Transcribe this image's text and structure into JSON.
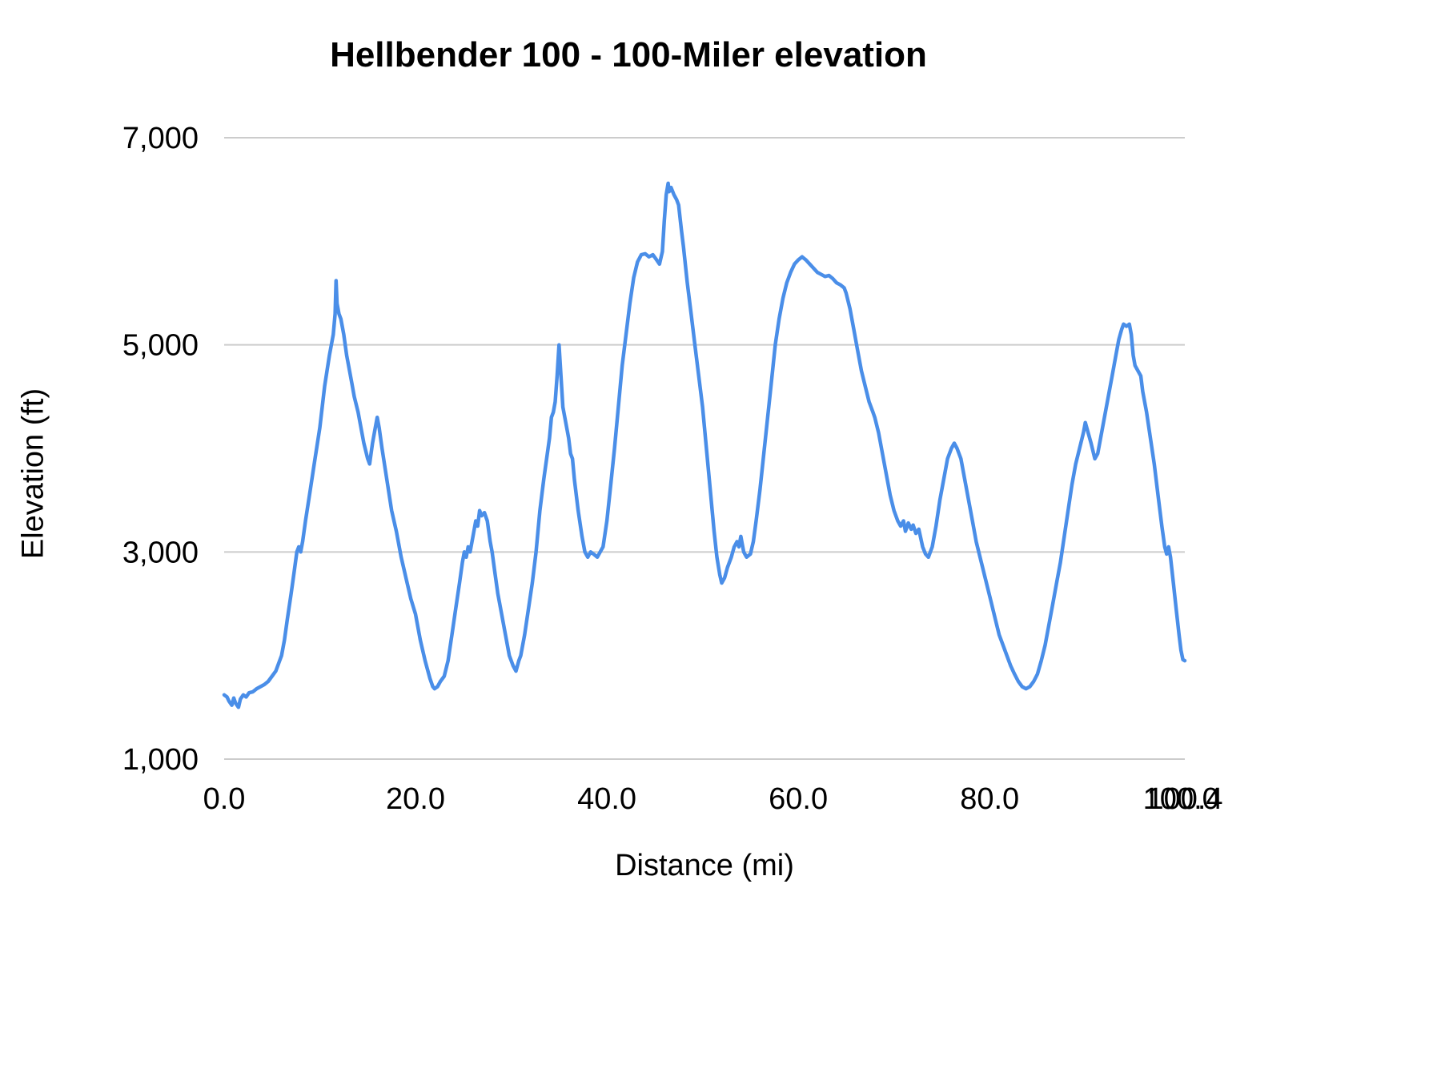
{
  "chart_data": {
    "type": "line",
    "title": "Hellbender 100 - 100-Miler elevation",
    "xlabel": "Distance (mi)",
    "ylabel": "Elevation (ft)",
    "xlim": [
      0,
      100.4
    ],
    "ylim": [
      1000,
      7000
    ],
    "grid": "horizontal",
    "legend": "none",
    "line_color": "#4a8ee8",
    "grid_color": "#cccccc",
    "text_color": "#000000",
    "x_ticks": [
      {
        "value": 0,
        "label": "0.0"
      },
      {
        "value": 20,
        "label": "20.0"
      },
      {
        "value": 40,
        "label": "40.0"
      },
      {
        "value": 60,
        "label": "60.0"
      },
      {
        "value": 80,
        "label": "80.0"
      },
      {
        "value": 100,
        "label": "100.0"
      },
      {
        "value": 100.4,
        "label": "100.4"
      }
    ],
    "y_ticks": [
      {
        "value": 1000,
        "label": "1,000"
      },
      {
        "value": 3000,
        "label": "3,000"
      },
      {
        "value": 5000,
        "label": "5,000"
      },
      {
        "value": 7000,
        "label": "7,000"
      }
    ],
    "series": [
      {
        "name": "Elevation",
        "points": [
          [
            0.0,
            1620
          ],
          [
            0.3,
            1600
          ],
          [
            0.5,
            1560
          ],
          [
            0.8,
            1520
          ],
          [
            1.0,
            1590
          ],
          [
            1.2,
            1540
          ],
          [
            1.5,
            1500
          ],
          [
            1.7,
            1580
          ],
          [
            2.0,
            1620
          ],
          [
            2.3,
            1600
          ],
          [
            2.6,
            1640
          ],
          [
            3.0,
            1650
          ],
          [
            3.4,
            1680
          ],
          [
            3.8,
            1700
          ],
          [
            4.2,
            1720
          ],
          [
            4.6,
            1750
          ],
          [
            5.0,
            1800
          ],
          [
            5.4,
            1850
          ],
          [
            5.8,
            1950
          ],
          [
            6.0,
            2000
          ],
          [
            6.3,
            2150
          ],
          [
            6.6,
            2350
          ],
          [
            7.0,
            2600
          ],
          [
            7.3,
            2800
          ],
          [
            7.6,
            3000
          ],
          [
            7.8,
            3050
          ],
          [
            8.0,
            3000
          ],
          [
            8.2,
            3100
          ],
          [
            8.5,
            3300
          ],
          [
            9.0,
            3600
          ],
          [
            9.5,
            3900
          ],
          [
            10.0,
            4200
          ],
          [
            10.5,
            4600
          ],
          [
            11.0,
            4900
          ],
          [
            11.2,
            5000
          ],
          [
            11.4,
            5100
          ],
          [
            11.6,
            5300
          ],
          [
            11.7,
            5620
          ],
          [
            11.8,
            5400
          ],
          [
            12.0,
            5300
          ],
          [
            12.2,
            5250
          ],
          [
            12.5,
            5100
          ],
          [
            12.8,
            4900
          ],
          [
            13.0,
            4800
          ],
          [
            13.3,
            4650
          ],
          [
            13.6,
            4500
          ],
          [
            14.0,
            4350
          ],
          [
            14.3,
            4200
          ],
          [
            14.6,
            4050
          ],
          [
            15.0,
            3900
          ],
          [
            15.2,
            3850
          ],
          [
            15.5,
            4050
          ],
          [
            15.8,
            4200
          ],
          [
            16.0,
            4300
          ],
          [
            16.2,
            4200
          ],
          [
            16.5,
            4000
          ],
          [
            17.0,
            3700
          ],
          [
            17.5,
            3400
          ],
          [
            18.0,
            3200
          ],
          [
            18.5,
            2950
          ],
          [
            19.0,
            2750
          ],
          [
            19.5,
            2550
          ],
          [
            20.0,
            2400
          ],
          [
            20.5,
            2150
          ],
          [
            21.0,
            1950
          ],
          [
            21.5,
            1780
          ],
          [
            21.8,
            1700
          ],
          [
            22.0,
            1680
          ],
          [
            22.3,
            1700
          ],
          [
            22.6,
            1750
          ],
          [
            23.0,
            1800
          ],
          [
            23.4,
            1950
          ],
          [
            23.8,
            2200
          ],
          [
            24.2,
            2450
          ],
          [
            24.6,
            2700
          ],
          [
            24.9,
            2900
          ],
          [
            25.1,
            3000
          ],
          [
            25.3,
            2950
          ],
          [
            25.5,
            3050
          ],
          [
            25.7,
            3000
          ],
          [
            26.0,
            3150
          ],
          [
            26.3,
            3300
          ],
          [
            26.5,
            3250
          ],
          [
            26.7,
            3400
          ],
          [
            26.9,
            3350
          ],
          [
            27.2,
            3380
          ],
          [
            27.5,
            3300
          ],
          [
            27.8,
            3100
          ],
          [
            28.0,
            3000
          ],
          [
            28.3,
            2800
          ],
          [
            28.6,
            2600
          ],
          [
            29.0,
            2400
          ],
          [
            29.4,
            2200
          ],
          [
            29.8,
            2000
          ],
          [
            30.2,
            1900
          ],
          [
            30.5,
            1850
          ],
          [
            30.8,
            1950
          ],
          [
            31.0,
            2000
          ],
          [
            31.4,
            2200
          ],
          [
            31.8,
            2450
          ],
          [
            32.2,
            2700
          ],
          [
            32.6,
            3000
          ],
          [
            33.0,
            3400
          ],
          [
            33.4,
            3700
          ],
          [
            33.7,
            3900
          ],
          [
            34.0,
            4100
          ],
          [
            34.2,
            4300
          ],
          [
            34.4,
            4350
          ],
          [
            34.6,
            4450
          ],
          [
            34.8,
            4700
          ],
          [
            35.0,
            5000
          ],
          [
            35.2,
            4700
          ],
          [
            35.4,
            4400
          ],
          [
            35.6,
            4300
          ],
          [
            35.8,
            4200
          ],
          [
            36.0,
            4100
          ],
          [
            36.2,
            3950
          ],
          [
            36.4,
            3900
          ],
          [
            36.6,
            3700
          ],
          [
            37.0,
            3400
          ],
          [
            37.4,
            3150
          ],
          [
            37.7,
            3000
          ],
          [
            38.0,
            2950
          ],
          [
            38.3,
            3000
          ],
          [
            38.6,
            2980
          ],
          [
            39.0,
            2950
          ],
          [
            39.3,
            3000
          ],
          [
            39.6,
            3050
          ],
          [
            40.0,
            3300
          ],
          [
            40.4,
            3650
          ],
          [
            40.8,
            4000
          ],
          [
            41.2,
            4400
          ],
          [
            41.6,
            4800
          ],
          [
            42.0,
            5100
          ],
          [
            42.4,
            5400
          ],
          [
            42.8,
            5650
          ],
          [
            43.2,
            5800
          ],
          [
            43.6,
            5870
          ],
          [
            44.0,
            5880
          ],
          [
            44.4,
            5850
          ],
          [
            44.8,
            5870
          ],
          [
            45.2,
            5820
          ],
          [
            45.5,
            5780
          ],
          [
            45.8,
            5900
          ],
          [
            46.0,
            6200
          ],
          [
            46.2,
            6450
          ],
          [
            46.4,
            6560
          ],
          [
            46.5,
            6480
          ],
          [
            46.7,
            6520
          ],
          [
            47.0,
            6450
          ],
          [
            47.3,
            6400
          ],
          [
            47.5,
            6350
          ],
          [
            47.8,
            6100
          ],
          [
            48.0,
            5950
          ],
          [
            48.4,
            5600
          ],
          [
            48.8,
            5300
          ],
          [
            49.2,
            5000
          ],
          [
            49.6,
            4700
          ],
          [
            50.0,
            4400
          ],
          [
            50.4,
            4000
          ],
          [
            50.8,
            3600
          ],
          [
            51.2,
            3200
          ],
          [
            51.5,
            2950
          ],
          [
            51.8,
            2780
          ],
          [
            52.0,
            2700
          ],
          [
            52.3,
            2750
          ],
          [
            52.6,
            2850
          ],
          [
            53.0,
            2950
          ],
          [
            53.3,
            3050
          ],
          [
            53.6,
            3100
          ],
          [
            53.8,
            3050
          ],
          [
            54.0,
            3150
          ],
          [
            54.3,
            3000
          ],
          [
            54.6,
            2950
          ],
          [
            55.0,
            2980
          ],
          [
            55.3,
            3100
          ],
          [
            55.6,
            3300
          ],
          [
            56.0,
            3600
          ],
          [
            56.4,
            3950
          ],
          [
            56.8,
            4300
          ],
          [
            57.2,
            4650
          ],
          [
            57.6,
            5000
          ],
          [
            58.0,
            5250
          ],
          [
            58.4,
            5450
          ],
          [
            58.8,
            5600
          ],
          [
            59.2,
            5700
          ],
          [
            59.6,
            5780
          ],
          [
            60.0,
            5820
          ],
          [
            60.4,
            5850
          ],
          [
            60.8,
            5820
          ],
          [
            61.2,
            5780
          ],
          [
            61.6,
            5740
          ],
          [
            62.0,
            5700
          ],
          [
            62.4,
            5680
          ],
          [
            62.8,
            5660
          ],
          [
            63.2,
            5670
          ],
          [
            63.6,
            5640
          ],
          [
            64.0,
            5600
          ],
          [
            64.4,
            5580
          ],
          [
            64.8,
            5550
          ],
          [
            65.0,
            5500
          ],
          [
            65.4,
            5350
          ],
          [
            65.8,
            5150
          ],
          [
            66.2,
            4950
          ],
          [
            66.6,
            4750
          ],
          [
            67.0,
            4600
          ],
          [
            67.4,
            4450
          ],
          [
            67.8,
            4350
          ],
          [
            68.0,
            4300
          ],
          [
            68.4,
            4150
          ],
          [
            68.8,
            3950
          ],
          [
            69.2,
            3750
          ],
          [
            69.6,
            3550
          ],
          [
            70.0,
            3400
          ],
          [
            70.4,
            3300
          ],
          [
            70.7,
            3250
          ],
          [
            71.0,
            3300
          ],
          [
            71.2,
            3200
          ],
          [
            71.5,
            3280
          ],
          [
            71.8,
            3220
          ],
          [
            72.0,
            3260
          ],
          [
            72.3,
            3180
          ],
          [
            72.6,
            3220
          ],
          [
            73.0,
            3050
          ],
          [
            73.3,
            2980
          ],
          [
            73.6,
            2950
          ],
          [
            74.0,
            3050
          ],
          [
            74.4,
            3250
          ],
          [
            74.8,
            3500
          ],
          [
            75.2,
            3700
          ],
          [
            75.6,
            3900
          ],
          [
            76.0,
            4000
          ],
          [
            76.3,
            4050
          ],
          [
            76.6,
            4000
          ],
          [
            77.0,
            3900
          ],
          [
            77.4,
            3700
          ],
          [
            77.8,
            3500
          ],
          [
            78.2,
            3300
          ],
          [
            78.6,
            3100
          ],
          [
            79.0,
            2950
          ],
          [
            79.4,
            2800
          ],
          [
            79.8,
            2650
          ],
          [
            80.2,
            2500
          ],
          [
            80.6,
            2350
          ],
          [
            81.0,
            2200
          ],
          [
            81.4,
            2100
          ],
          [
            81.8,
            2000
          ],
          [
            82.2,
            1900
          ],
          [
            82.6,
            1820
          ],
          [
            83.0,
            1750
          ],
          [
            83.4,
            1700
          ],
          [
            83.8,
            1680
          ],
          [
            84.2,
            1700
          ],
          [
            84.6,
            1750
          ],
          [
            85.0,
            1820
          ],
          [
            85.4,
            1950
          ],
          [
            85.8,
            2100
          ],
          [
            86.2,
            2300
          ],
          [
            86.6,
            2500
          ],
          [
            87.0,
            2700
          ],
          [
            87.4,
            2900
          ],
          [
            87.8,
            3150
          ],
          [
            88.2,
            3400
          ],
          [
            88.6,
            3650
          ],
          [
            89.0,
            3850
          ],
          [
            89.4,
            4000
          ],
          [
            89.8,
            4150
          ],
          [
            90.0,
            4250
          ],
          [
            90.3,
            4150
          ],
          [
            90.6,
            4050
          ],
          [
            91.0,
            3900
          ],
          [
            91.3,
            3950
          ],
          [
            91.6,
            4100
          ],
          [
            92.0,
            4300
          ],
          [
            92.4,
            4500
          ],
          [
            92.8,
            4700
          ],
          [
            93.2,
            4900
          ],
          [
            93.5,
            5050
          ],
          [
            93.8,
            5150
          ],
          [
            94.0,
            5200
          ],
          [
            94.3,
            5180
          ],
          [
            94.6,
            5200
          ],
          [
            94.8,
            5100
          ],
          [
            95.0,
            4900
          ],
          [
            95.2,
            4800
          ],
          [
            95.5,
            4750
          ],
          [
            95.8,
            4700
          ],
          [
            96.0,
            4550
          ],
          [
            96.4,
            4350
          ],
          [
            96.8,
            4100
          ],
          [
            97.2,
            3850
          ],
          [
            97.6,
            3550
          ],
          [
            98.0,
            3250
          ],
          [
            98.3,
            3050
          ],
          [
            98.5,
            2980
          ],
          [
            98.7,
            3050
          ],
          [
            98.9,
            2950
          ],
          [
            99.2,
            2700
          ],
          [
            99.5,
            2450
          ],
          [
            99.8,
            2200
          ],
          [
            100.0,
            2050
          ],
          [
            100.2,
            1960
          ],
          [
            100.4,
            1950
          ]
        ]
      }
    ]
  }
}
